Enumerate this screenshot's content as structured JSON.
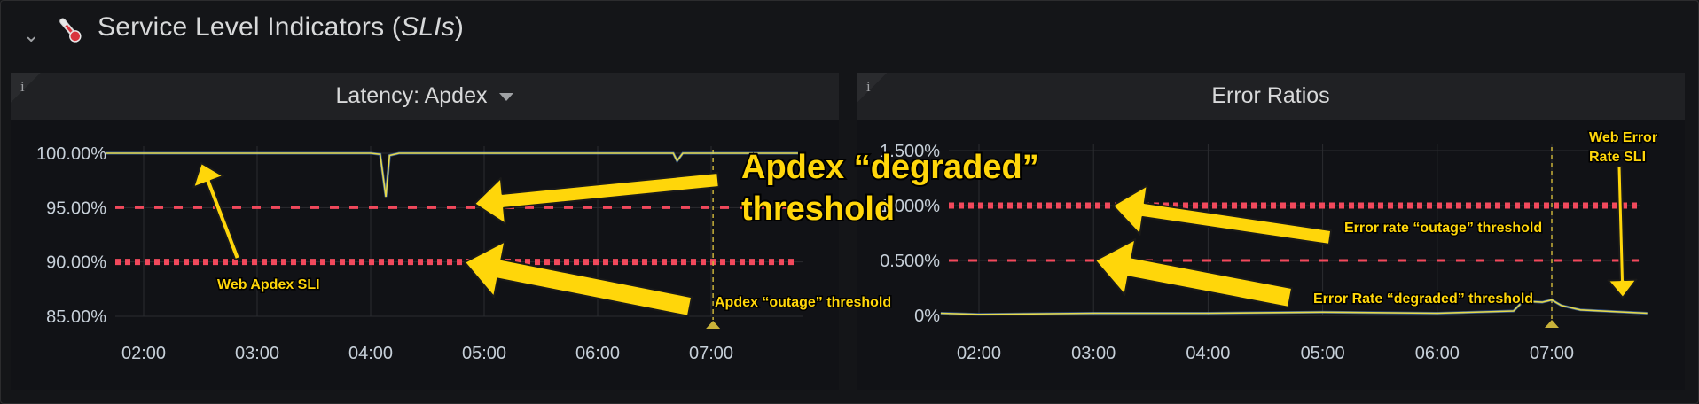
{
  "row": {
    "title_main": "Service Level Indicators (",
    "title_italic": "SLIs",
    "title_close": ")"
  },
  "panels": [
    {
      "title": "Latency: Apdex",
      "info": "i",
      "y_ticks": [
        "100.00%",
        "95.00%",
        "90.00%",
        "85.00%"
      ],
      "x_ticks": [
        "02:00",
        "03:00",
        "04:00",
        "05:00",
        "06:00",
        "07:00"
      ]
    },
    {
      "title": "Error Ratios",
      "info": "i",
      "y_ticks": [
        "1.500%",
        "1.000%",
        "0.500%",
        "0%"
      ],
      "x_ticks": [
        "02:00",
        "03:00",
        "04:00",
        "05:00",
        "06:00",
        "07:00"
      ]
    }
  ],
  "annotations": {
    "apdex_degraded": [
      "Apdex “degraded”",
      "threshold"
    ],
    "web_apdex_sli": "Web Apdex SLI",
    "apdex_outage": "Apdex “outage” threshold",
    "error_outage": "Error rate “outage” threshold",
    "error_degraded": "Error Rate “degraded” threshold",
    "web_error_sli": [
      "Web Error",
      "Rate SLI"
    ]
  },
  "chart_data": [
    {
      "type": "line",
      "title": "Latency: Apdex",
      "ylim": [
        85,
        100
      ],
      "x": [
        "01:40",
        "02:00",
        "03:00",
        "04:00",
        "04:05",
        "04:08",
        "04:10",
        "04:15",
        "05:00",
        "06:00",
        "06:40",
        "06:42",
        "06:45",
        "07:00",
        "07:50"
      ],
      "series": [
        {
          "name": "Web Apdex SLI",
          "values": [
            100,
            100,
            100,
            100,
            99.9,
            96,
            99.8,
            100,
            100,
            100,
            100,
            99.3,
            100,
            100,
            100
          ]
        }
      ],
      "thresholds": {
        "degraded": 95,
        "outage": 90
      },
      "annotation_marker": "07:01",
      "colors": {
        "sli": "#e5d94a",
        "degraded": "#f2495c",
        "outage": "#f2495c",
        "marker": "#c9b23a"
      }
    },
    {
      "type": "line",
      "title": "Error Ratios",
      "ylim": [
        0,
        1.5
      ],
      "x": [
        "01:40",
        "02:00",
        "03:00",
        "04:00",
        "05:00",
        "06:00",
        "06:40",
        "06:45",
        "06:55",
        "07:00",
        "07:05",
        "07:15",
        "07:50"
      ],
      "series": [
        {
          "name": "Web Error Rate SLI",
          "values": [
            0.02,
            0.01,
            0.02,
            0.02,
            0.03,
            0.02,
            0.04,
            0.13,
            0.12,
            0.14,
            0.09,
            0.05,
            0.02
          ]
        }
      ],
      "thresholds": {
        "outage": 1.0,
        "degraded": 0.5
      },
      "annotation_marker": "07:00",
      "colors": {
        "sli": "#e5d94a",
        "degraded": "#f2495c",
        "outage": "#f2495c",
        "marker": "#c9b23a"
      }
    }
  ],
  "colors": {
    "accent_yellow": "#ffd60a",
    "threshold_red": "#f2495c",
    "panel_bg": "#111216",
    "panel_head": "#202124"
  }
}
